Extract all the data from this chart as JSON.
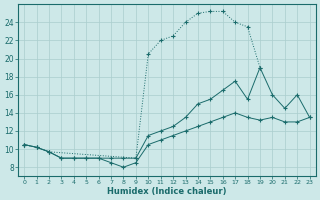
{
  "xlabel": "Humidex (Indice chaleur)",
  "background_color": "#cde8e8",
  "line_color": "#1a6b6b",
  "grid_color": "#aacece",
  "xlim": [
    -0.5,
    23.5
  ],
  "ylim": [
    7.0,
    26.0
  ],
  "yticks": [
    8,
    10,
    12,
    14,
    16,
    18,
    20,
    22,
    24
  ],
  "xticks": [
    0,
    1,
    2,
    3,
    4,
    5,
    6,
    7,
    8,
    9,
    10,
    11,
    12,
    13,
    14,
    15,
    16,
    17,
    18,
    19,
    20,
    21,
    22,
    23
  ],
  "s1_x": [
    0,
    1,
    2,
    3,
    4,
    5,
    6,
    7,
    8,
    9,
    10,
    11,
    12,
    13,
    14,
    15,
    16,
    17,
    18,
    19,
    20,
    21,
    22,
    23
  ],
  "s1_y": [
    10.5,
    10.2,
    9.7,
    9.0,
    9.0,
    9.0,
    9.0,
    8.5,
    8.0,
    8.5,
    10.5,
    11.0,
    11.5,
    12.0,
    12.5,
    13.0,
    13.5,
    14.0,
    13.5,
    13.2,
    13.5,
    13.0,
    13.0,
    13.5
  ],
  "s2_x": [
    0,
    1,
    2,
    3,
    4,
    5,
    6,
    7,
    8,
    9,
    10,
    11,
    12,
    13,
    14,
    15,
    16,
    17,
    18,
    19,
    20,
    21,
    22,
    23
  ],
  "s2_y": [
    10.5,
    10.2,
    9.7,
    9.0,
    9.0,
    9.0,
    9.0,
    9.0,
    9.0,
    9.0,
    11.5,
    12.0,
    12.5,
    13.5,
    15.0,
    15.5,
    16.5,
    17.5,
    15.5,
    19.0,
    16.0,
    14.5,
    16.0,
    13.5
  ],
  "s3_x": [
    0,
    1,
    2,
    9,
    10,
    11,
    12,
    13,
    14,
    15,
    16,
    17,
    18,
    19
  ],
  "s3_y": [
    10.5,
    10.2,
    9.7,
    9.0,
    20.5,
    22.0,
    22.5,
    24.0,
    25.0,
    25.2,
    25.2,
    24.0,
    23.5,
    19.0
  ]
}
